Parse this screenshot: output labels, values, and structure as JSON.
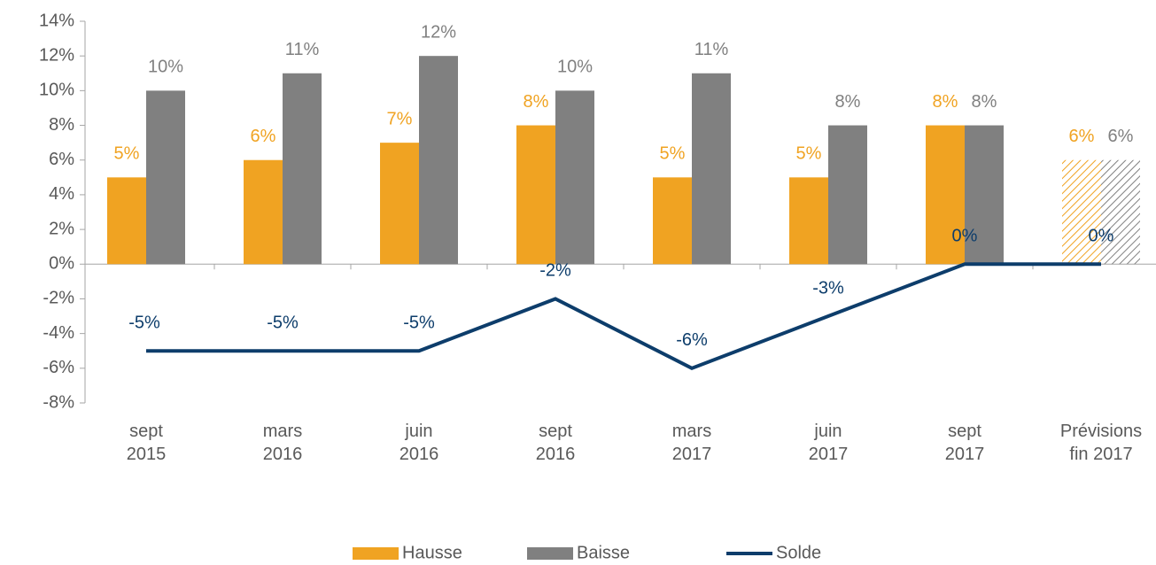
{
  "chart_data": {
    "type": "bar_line",
    "categories": [
      "sept\n2015",
      "mars\n2016",
      "juin\n2016",
      "sept\n2016",
      "mars\n2017",
      "juin\n2017",
      "sept\n2017",
      "Prévisions\nfin 2017"
    ],
    "series": [
      {
        "name": "Hausse",
        "type": "bar",
        "color": "#f0a322",
        "values": [
          5,
          6,
          7,
          8,
          5,
          5,
          8,
          6
        ],
        "value_labels": [
          "5%",
          "6%",
          "7%",
          "8%",
          "5%",
          "5%",
          "8%",
          "6%"
        ]
      },
      {
        "name": "Baisse",
        "type": "bar",
        "color": "#808080",
        "values": [
          10,
          11,
          12,
          10,
          11,
          8,
          8,
          6
        ],
        "value_labels": [
          "10%",
          "11%",
          "12%",
          "10%",
          "11%",
          "8%",
          "8%",
          "6%"
        ]
      },
      {
        "name": "Solde",
        "type": "line",
        "color": "#0d3d6b",
        "values": [
          -5,
          -5,
          -5,
          -2,
          -6,
          -3,
          0,
          0
        ],
        "value_labels": [
          "-5%",
          "-5%",
          "-5%",
          "-2%",
          "-6%",
          "-3%",
          "0%",
          "0%"
        ]
      }
    ],
    "hatched": [
      7
    ],
    "ylim": [
      -8,
      14
    ],
    "yticks": [
      {
        "value": -8,
        "label": "-8%"
      },
      {
        "value": -6,
        "label": "-6%"
      },
      {
        "value": -4,
        "label": "-4%"
      },
      {
        "value": -2,
        "label": "-2%"
      },
      {
        "value": 0,
        "label": "0%"
      },
      {
        "value": 2,
        "label": "2%"
      },
      {
        "value": 4,
        "label": "4%"
      },
      {
        "value": 6,
        "label": "6%"
      },
      {
        "value": 8,
        "label": "8%"
      },
      {
        "value": 10,
        "label": "10%"
      },
      {
        "value": 12,
        "label": "12%"
      },
      {
        "value": 14,
        "label": "14%"
      }
    ],
    "legend": "bottom"
  }
}
